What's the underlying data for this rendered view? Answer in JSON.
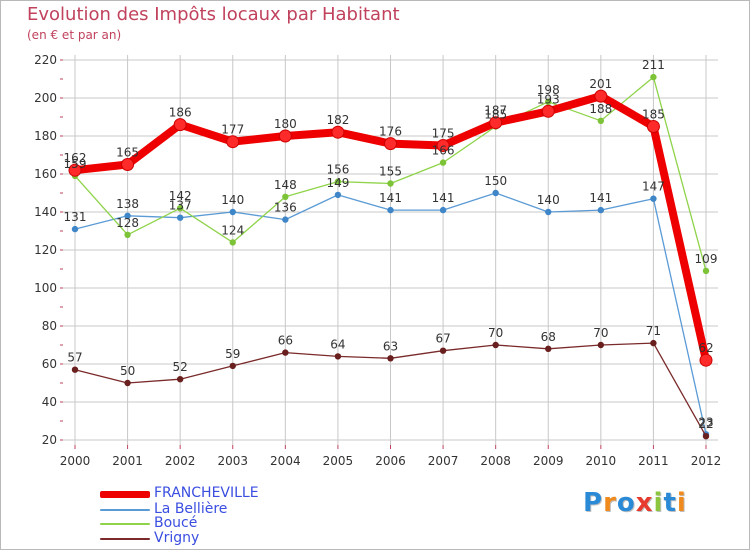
{
  "header": {
    "title": "Evolution des Impôts locaux par Habitant",
    "subtitle": "(en € et par an)"
  },
  "logo": {
    "letters": [
      "P",
      "r",
      "o",
      "x",
      "i",
      "t",
      "i"
    ],
    "colors": [
      "#2a8ad6",
      "#f08a1c",
      "#2a8ad6",
      "#e63b2e",
      "#8cc63f",
      "#2a8ad6",
      "#f08a1c"
    ]
  },
  "colors": {
    "frame": "#b9b9b9",
    "title": "#c0425d",
    "grid": "#c8c8c8",
    "axis_text": "#333333",
    "tick": "#c0425d"
  },
  "chart_data": {
    "type": "line",
    "title": "Evolution des Impôts locaux par Habitant",
    "subtitle": "(en € et par an)",
    "xlabel": "",
    "ylabel": "",
    "ylim": [
      20,
      220
    ],
    "yticks": [
      20,
      40,
      60,
      80,
      100,
      120,
      140,
      160,
      180,
      200,
      220
    ],
    "grid": true,
    "legend_position": "bottom-left",
    "categories": [
      "2000",
      "2001",
      "2002",
      "2003",
      "2004",
      "2005",
      "2006",
      "2007",
      "2008",
      "2009",
      "2010",
      "2011",
      "2012"
    ],
    "series": [
      {
        "name": "FRANCHEVILLE",
        "color": "#ee0000",
        "marker": "#ff2a2a",
        "stroke_width": "thick",
        "values": [
          162,
          165,
          186,
          177,
          180,
          182,
          176,
          175,
          187,
          193,
          201,
          185,
          62
        ]
      },
      {
        "name": "La Bellière",
        "color": "#5b9bd5",
        "marker": "#3f86c8",
        "stroke_width": "thin",
        "values": [
          131,
          138,
          137,
          140,
          136,
          149,
          141,
          141,
          150,
          140,
          141,
          147,
          23
        ]
      },
      {
        "name": "Boucé",
        "color": "#8fd34a",
        "marker": "#7cc338",
        "stroke_width": "thin",
        "values": [
          159,
          128,
          142,
          124,
          148,
          156,
          155,
          166,
          185,
          198,
          188,
          211,
          109
        ]
      },
      {
        "name": "Vrigny",
        "color": "#7a2a2a",
        "marker": "#6a1f1f",
        "stroke_width": "thin",
        "values": [
          57,
          50,
          52,
          59,
          66,
          64,
          63,
          67,
          70,
          68,
          70,
          71,
          22
        ]
      }
    ]
  }
}
